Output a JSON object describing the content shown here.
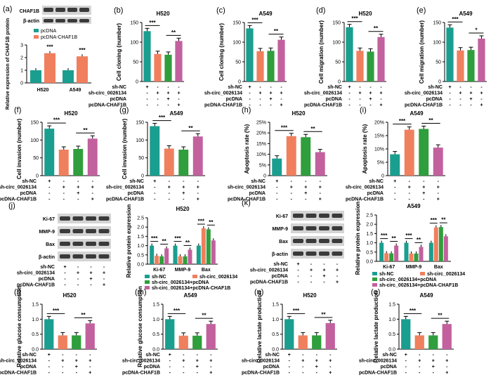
{
  "colors": {
    "teal": "#1a9e8f",
    "orange": "#f07f5e",
    "green": "#2f9e3c",
    "pink": "#c2619e",
    "blot_bg": "#d4d4d4",
    "blot_band": "#3a3a3a"
  },
  "chart_data": [
    {
      "id": "a",
      "type": "bar",
      "panel": "(a)",
      "title": "",
      "blots": [
        "CHAF1B",
        "β-actin"
      ],
      "legend": [
        "pcDNA",
        "pcDNA-CHAF1B"
      ],
      "categories": [
        "H520",
        "A549"
      ],
      "series": [
        {
          "name": "pcDNA",
          "values": [
            1.0,
            1.0
          ]
        },
        {
          "name": "pcDNA-CHAF1B",
          "values": [
            2.35,
            2.1
          ]
        }
      ],
      "ylabel": "Relative expression of CHAF1B protein",
      "ylim": [
        0,
        3
      ],
      "yticks": [
        "0",
        "1",
        "2",
        "3"
      ],
      "sig": [
        "***",
        "***"
      ]
    },
    {
      "id": "b",
      "type": "bar",
      "panel": "(b)",
      "title": "H520",
      "ylabel": "Cell cloning (number)",
      "values": [
        128,
        70,
        68,
        103
      ],
      "ylim": [
        0,
        150
      ],
      "yticks": [
        "0",
        "50",
        "100",
        "150"
      ],
      "sig": [
        "***",
        "**"
      ]
    },
    {
      "id": "c",
      "type": "bar",
      "panel": "(c)",
      "title": "A549",
      "ylabel": "Cell cloning (number)",
      "values": [
        135,
        77,
        78,
        106
      ],
      "ylim": [
        0,
        150
      ],
      "yticks": [
        "0",
        "50",
        "100",
        "150"
      ],
      "sig": [
        "***",
        "**"
      ]
    },
    {
      "id": "d",
      "type": "bar",
      "panel": "(d)",
      "title": "H520",
      "ylabel": "Cell migration (number)",
      "values": [
        138,
        78,
        76,
        113
      ],
      "ylim": [
        0,
        150
      ],
      "yticks": [
        "0",
        "50",
        "100",
        "150"
      ],
      "sig": [
        "***",
        "**"
      ]
    },
    {
      "id": "e",
      "type": "bar",
      "panel": "(e)",
      "title": "A549",
      "ylabel": "Cell migration (number)",
      "values": [
        137,
        79,
        80,
        109
      ],
      "ylim": [
        0,
        150
      ],
      "yticks": [
        "0",
        "50",
        "100",
        "150"
      ],
      "sig": [
        "***",
        "*"
      ]
    },
    {
      "id": "f",
      "type": "bar",
      "panel": "(f)",
      "title": "H520",
      "ylabel": "Cell invasion (number)",
      "values": [
        132,
        73,
        75,
        104
      ],
      "ylim": [
        0,
        150
      ],
      "yticks": [
        "0",
        "50",
        "100",
        "150"
      ],
      "sig": [
        "***",
        "**"
      ]
    },
    {
      "id": "g",
      "type": "bar",
      "panel": "(g)",
      "title": "A549",
      "ylabel": "Cell invasion (number)",
      "values": [
        139,
        76,
        73,
        110
      ],
      "ylim": [
        0,
        150
      ],
      "yticks": [
        "0",
        "50",
        "100",
        "150"
      ],
      "sig": [
        "***",
        "**"
      ]
    },
    {
      "id": "h",
      "type": "bar",
      "panel": "(h)",
      "title": "H520",
      "ylabel": "Apoptosis rate (%)",
      "values": [
        8,
        18.5,
        18,
        11
      ],
      "ylim": [
        0,
        25
      ],
      "yticks": [
        "0",
        "5%",
        "10%",
        "15%",
        "20%",
        "25%"
      ],
      "sig": [
        "***",
        "**"
      ]
    },
    {
      "id": "i",
      "type": "bar",
      "panel": "(i)",
      "title": "A549",
      "ylabel": "Apoptosis rate (%)",
      "values": [
        8,
        17.2,
        17.5,
        10.5
      ],
      "ylim": [
        0,
        20
      ],
      "yticks": [
        "0",
        "5%",
        "10%",
        "15%",
        "20%"
      ],
      "sig": [
        "***",
        "**"
      ]
    },
    {
      "id": "j",
      "type": "bar",
      "panel": "(j)",
      "title": "H520",
      "ylabel": "Relative protein expression",
      "blots": [
        "Ki-67",
        "MMP-9",
        "Bax",
        "β-actin"
      ],
      "categories": [
        "Ki-67",
        "MMP-9",
        "Bax"
      ],
      "series": [
        {
          "name": "sh-NC",
          "values": [
            1.0,
            1.0,
            1.0
          ]
        },
        {
          "name": "sh-circ_0026134",
          "values": [
            0.45,
            0.42,
            1.93
          ]
        },
        {
          "name": "sh-circ_0026134+pcDNA",
          "values": [
            0.42,
            0.42,
            1.88
          ]
        },
        {
          "name": "sh-circ_0026134+pcDNA-CHAF1B",
          "values": [
            0.85,
            0.78,
            1.28
          ]
        }
      ],
      "ylim": [
        0,
        2.5
      ],
      "yticks": [
        "0.0",
        "0.5",
        "1.0",
        "1.5",
        "2.0",
        "2.5"
      ],
      "sig": [
        "***",
        "**",
        "***",
        "**",
        "***",
        "**"
      ]
    },
    {
      "id": "k",
      "type": "bar",
      "panel": "(k)",
      "title": "A549",
      "ylabel": "Relative protein expression",
      "blots": [
        "Ki-67",
        "MMP-9",
        "Bax",
        "β-actin"
      ],
      "categories": [
        "Ki-67",
        "MMP-9",
        "Bax"
      ],
      "series": [
        {
          "name": "sh-NC",
          "values": [
            1.0,
            1.0,
            1.0
          ]
        },
        {
          "name": "sh-circ_0026134",
          "values": [
            0.44,
            0.42,
            1.83
          ]
        },
        {
          "name": "sh-circ_0026134+pcDNA",
          "values": [
            0.43,
            0.42,
            1.85
          ]
        },
        {
          "name": "sh-circ_0026134+pcDNA-CHAF1B",
          "values": [
            0.85,
            0.78,
            1.35
          ]
        }
      ],
      "ylim": [
        0,
        2.5
      ],
      "yticks": [
        "0.0",
        "0.5",
        "1.0",
        "1.5",
        "2.0",
        "2.5"
      ],
      "sig": [
        "***",
        "**",
        "***",
        "**",
        "***",
        "**"
      ]
    },
    {
      "id": "l",
      "type": "bar",
      "panel": "(l)",
      "title": "H520",
      "ylabel": "Relative glucose consumption",
      "values": [
        1.0,
        0.46,
        0.46,
        0.86
      ],
      "ylim": [
        0,
        1.5
      ],
      "yticks": [
        "0.0",
        "0.5",
        "1.0",
        "1.5"
      ],
      "sig": [
        "***",
        "**"
      ]
    },
    {
      "id": "m",
      "type": "bar",
      "panel": "(m)",
      "title": "A549",
      "ylabel": "Relative glucose consumption",
      "values": [
        1.0,
        0.45,
        0.45,
        0.84
      ],
      "ylim": [
        0,
        1.5
      ],
      "yticks": [
        "0.0",
        "0.5",
        "1.0",
        "1.5"
      ],
      "sig": [
        "***",
        "**"
      ]
    },
    {
      "id": "n",
      "type": "bar",
      "panel": "(n)",
      "title": "H520",
      "ylabel": "Relative lactate production",
      "values": [
        1.0,
        0.46,
        0.46,
        0.87
      ],
      "ylim": [
        0,
        1.5
      ],
      "yticks": [
        "0.0",
        "0.5",
        "1.0",
        "1.5"
      ],
      "sig": [
        "***",
        "**"
      ]
    },
    {
      "id": "o",
      "type": "bar",
      "panel": "(o)",
      "title": "A549",
      "ylabel": "Relative lactate production",
      "values": [
        1.0,
        0.46,
        0.46,
        0.84
      ],
      "ylim": [
        0,
        1.5
      ],
      "yticks": [
        "0.0",
        "0.5",
        "1.0",
        "1.5"
      ],
      "sig": [
        "***",
        "**"
      ]
    }
  ],
  "group_rows": [
    "sh-NC",
    "sh-circ_0026134",
    "pcDNA",
    "pcDNA-CHAF1B"
  ],
  "group_marks": [
    [
      "+",
      "-",
      "-",
      "-"
    ],
    [
      "-",
      "+",
      "+",
      "+"
    ],
    [
      "-",
      "-",
      "+",
      "-"
    ],
    [
      "-",
      "-",
      "-",
      "+"
    ]
  ]
}
